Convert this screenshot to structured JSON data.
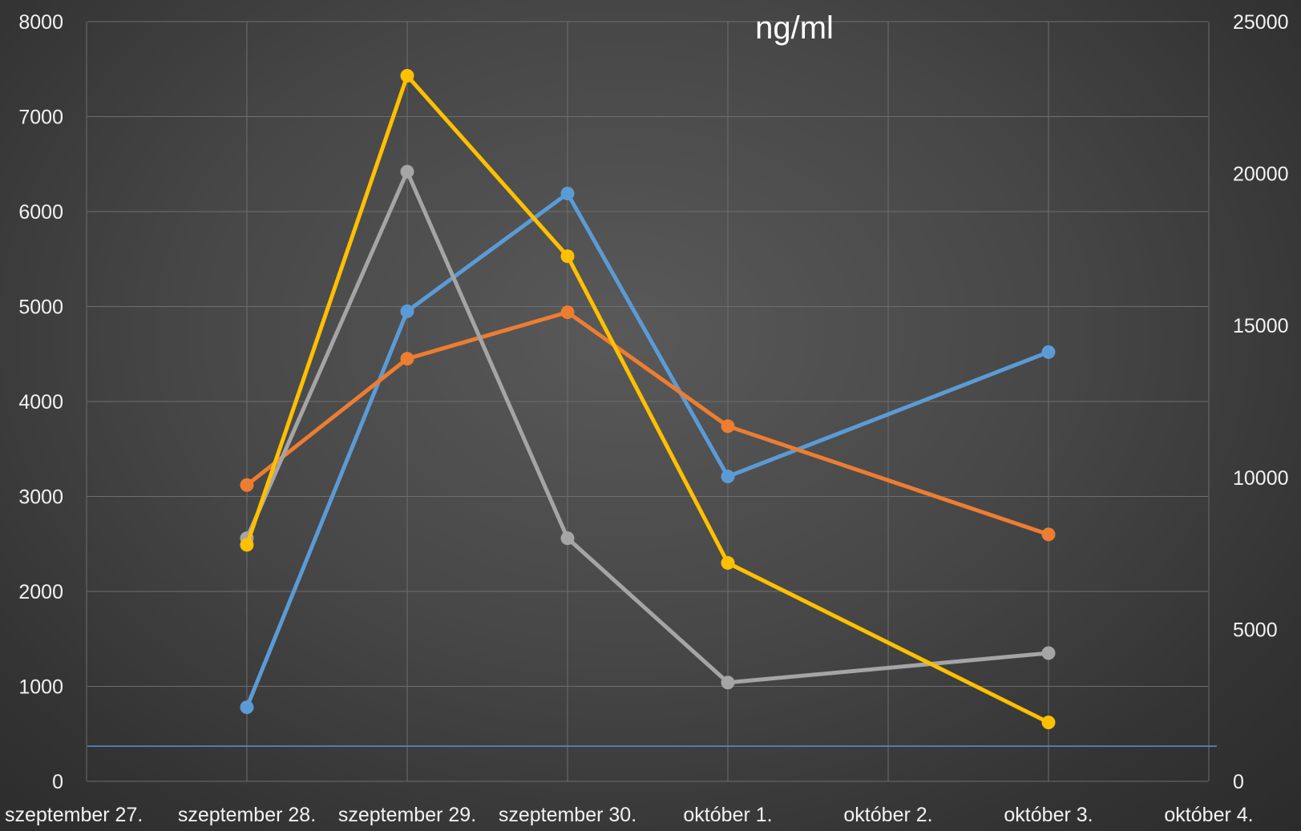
{
  "chart_data": {
    "type": "line",
    "title": "ng/ml",
    "categories": [
      "szeptember 27.",
      "szeptember 28.",
      "szeptember 29.",
      "szeptember 30.",
      "október 1.",
      "október 2.",
      "október 3.",
      "október 4."
    ],
    "y_left": {
      "min": 0,
      "max": 8000,
      "ticks": [
        "0",
        "1000",
        "2000",
        "3000",
        "4000",
        "5000",
        "6000",
        "7000",
        "8000"
      ]
    },
    "y_right": {
      "min": 0,
      "max": 25000,
      "ticks": [
        "0",
        "5000",
        "10000",
        "15000",
        "20000",
        "25000"
      ]
    },
    "reference_line": {
      "value": 370,
      "axis": "left",
      "color": "#5b8fd0"
    },
    "grid": true,
    "series": [
      {
        "color": "#5b9bd5",
        "values": [
          null,
          780,
          4950,
          6190,
          3210,
          null,
          4520,
          null
        ]
      },
      {
        "color": "#ed7d31",
        "values": [
          null,
          3120,
          4450,
          4940,
          3740,
          null,
          2600,
          null
        ]
      },
      {
        "color": "#a5a5a5",
        "values": [
          null,
          2560,
          6420,
          2560,
          1040,
          null,
          1350,
          null
        ]
      },
      {
        "color": "#ffc000",
        "values": [
          null,
          2490,
          7430,
          5530,
          2300,
          null,
          620,
          null
        ]
      }
    ]
  }
}
